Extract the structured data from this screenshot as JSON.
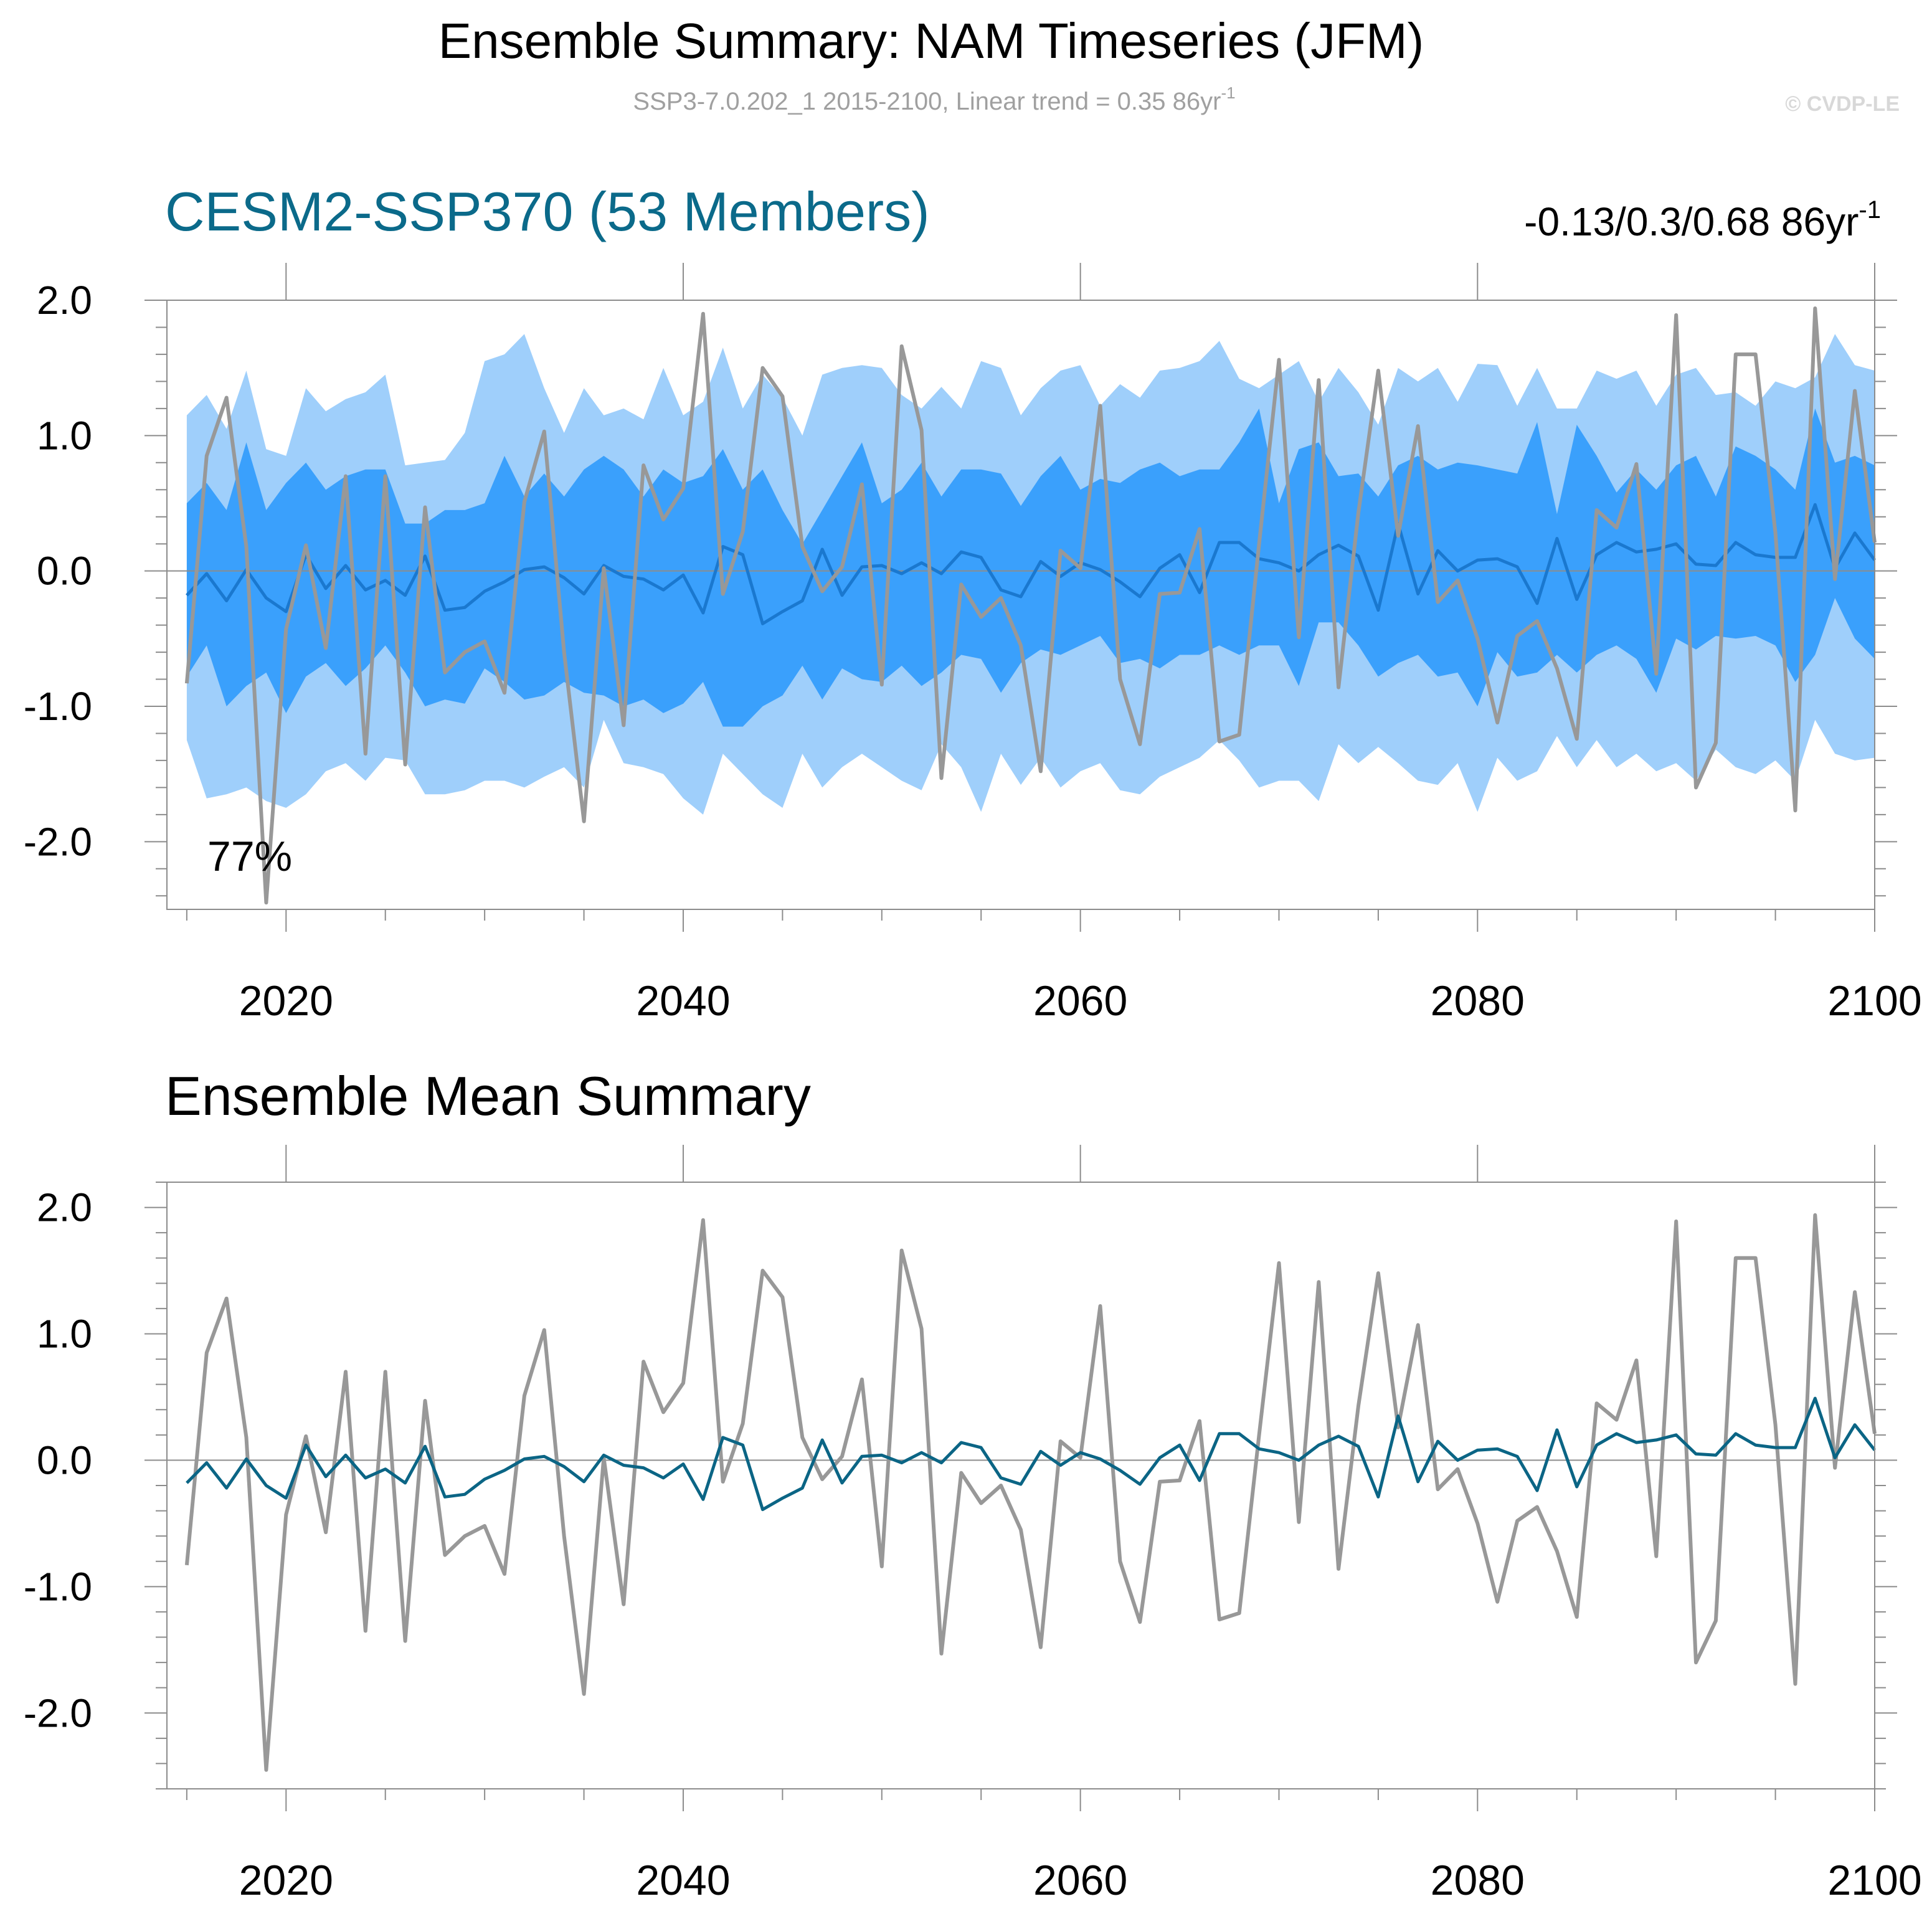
{
  "header": {
    "title": "Ensemble Summary: NAM Timeseries (JFM)",
    "subtitle_main": "SSP3-7.0.202_1 2015-2100, Linear trend = 0.35 86yr",
    "subtitle_sup": "-1",
    "copyright": "© CVDP-LE"
  },
  "colors": {
    "outer_band": "#9fcffb",
    "inner_band": "#3aa0fc",
    "ensemble_mean_top": "#1a78cf",
    "ensemble_mean_bottom": "#0b6585",
    "observations": "#989898",
    "panel_title": "#0b6a8a"
  },
  "panel_top": {
    "title": "CESM2-SSP370 (53 Members)",
    "trend_text": "-0.13/0.3/0.68 86yr",
    "trend_sup": "-1",
    "percent_label": "77%"
  },
  "panel_bottom": {
    "title": "Ensemble Mean Summary"
  },
  "chart_data": [
    {
      "type": "line",
      "title": "CESM2-SSP370 (53 Members)",
      "xlim": [
        2014,
        2100
      ],
      "ylim": [
        -2.5,
        2.0
      ],
      "x_ticks": [
        2020,
        2040,
        2060,
        2080,
        2100
      ],
      "y_ticks": [
        -2.0,
        -1.0,
        0.0,
        1.0,
        2.0
      ],
      "y_tick_labels": [
        "-2.0",
        "-1.0",
        "0.0",
        "1.0",
        "2.0"
      ],
      "x_tick_labels": [
        "2020",
        "2040",
        "2060",
        "2080",
        "2100"
      ],
      "years_start": 2015,
      "years_end": 2100,
      "series": [
        {
          "values": [
            1.15,
            1.3,
            1.05,
            1.48,
            0.9,
            0.85,
            1.35,
            1.18,
            1.27,
            1.32,
            1.45,
            0.78,
            0.8,
            0.82,
            1.02,
            1.55,
            1.6,
            1.75,
            1.35,
            1.02,
            1.35,
            1.15,
            1.2,
            1.12,
            1.5,
            1.15,
            1.25,
            1.65,
            1.2,
            1.45,
            1.28,
            1.0,
            1.45,
            1.5,
            1.52,
            1.5,
            1.3,
            1.2,
            1.36,
            1.2,
            1.55,
            1.5,
            1.15,
            1.35,
            1.48,
            1.52,
            1.22,
            1.38,
            1.28,
            1.48,
            1.5,
            1.55,
            1.7,
            1.42,
            1.35,
            1.45,
            1.55,
            1.25,
            1.5,
            1.32,
            1.08,
            1.5,
            1.4,
            1.5,
            1.25,
            1.53,
            1.52,
            1.22,
            1.5,
            1.2,
            1.2,
            1.48,
            1.42,
            1.48,
            1.22,
            1.45,
            1.5,
            1.3,
            1.32,
            1.22,
            1.4,
            1.35,
            1.43,
            1.75,
            1.52,
            1.48
          ]
        },
        {
          "values": [
            0.5,
            0.65,
            0.45,
            0.95,
            0.45,
            0.65,
            0.8,
            0.6,
            0.7,
            0.75,
            0.75,
            0.35,
            0.35,
            0.45,
            0.45,
            0.5,
            0.85,
            0.55,
            0.72,
            0.55,
            0.75,
            0.85,
            0.75,
            0.55,
            0.75,
            0.65,
            0.7,
            0.9,
            0.6,
            0.75,
            0.45,
            0.2,
            0.45,
            0.7,
            0.95,
            0.5,
            0.6,
            0.8,
            0.55,
            0.75,
            0.75,
            0.72,
            0.48,
            0.7,
            0.85,
            0.6,
            0.68,
            0.65,
            0.75,
            0.8,
            0.7,
            0.75,
            0.75,
            0.95,
            1.2,
            0.5,
            0.9,
            0.95,
            0.7,
            0.72,
            0.55,
            0.78,
            0.85,
            0.75,
            0.8,
            0.78,
            0.75,
            0.72,
            1.1,
            0.42,
            1.08,
            0.85,
            0.58,
            0.75,
            0.6,
            0.78,
            0.85,
            0.55,
            0.92,
            0.85,
            0.75,
            0.6,
            1.2,
            0.8,
            0.85,
            0.78
          ]
        },
        {
          "values": [
            -0.78,
            -0.55,
            -1.0,
            -0.85,
            -0.75,
            -1.05,
            -0.78,
            -0.68,
            -0.85,
            -0.72,
            -0.55,
            -0.75,
            -1.0,
            -0.95,
            -0.98,
            -0.72,
            -0.82,
            -0.95,
            -0.92,
            -0.82,
            -0.9,
            -0.92,
            -1.0,
            -0.95,
            -1.05,
            -0.98,
            -0.82,
            -1.15,
            -1.15,
            -1.0,
            -0.92,
            -0.7,
            -0.95,
            -0.72,
            -0.8,
            -0.82,
            -0.7,
            -0.85,
            -0.75,
            -0.62,
            -0.65,
            -0.9,
            -0.68,
            -0.58,
            -0.62,
            -0.55,
            -0.48,
            -0.68,
            -0.65,
            -0.72,
            -0.62,
            -0.62,
            -0.55,
            -0.62,
            -0.55,
            -0.55,
            -0.85,
            -0.38,
            -0.38,
            -0.55,
            -0.78,
            -0.68,
            -0.62,
            -0.78,
            -0.75,
            -1.0,
            -0.6,
            -0.78,
            -0.75,
            -0.62,
            -0.75,
            -0.62,
            -0.55,
            -0.65,
            -0.9,
            -0.5,
            -0.58,
            -0.48,
            -0.5,
            -0.48,
            -0.55,
            -0.82,
            -0.62,
            -0.2,
            -0.5,
            -0.65
          ]
        },
        {
          "values": [
            -1.25,
            -1.68,
            -1.65,
            -1.6,
            -1.7,
            -1.75,
            -1.65,
            -1.48,
            -1.42,
            -1.55,
            -1.38,
            -1.4,
            -1.65,
            -1.65,
            -1.62,
            -1.55,
            -1.55,
            -1.6,
            -1.52,
            -1.45,
            -1.6,
            -1.1,
            -1.42,
            -1.45,
            -1.5,
            -1.68,
            -1.8,
            -1.35,
            -1.5,
            -1.65,
            -1.75,
            -1.35,
            -1.6,
            -1.45,
            -1.35,
            -1.45,
            -1.55,
            -1.62,
            -1.28,
            -1.45,
            -1.78,
            -1.35,
            -1.58,
            -1.38,
            -1.6,
            -1.48,
            -1.42,
            -1.62,
            -1.65,
            -1.52,
            -1.45,
            -1.38,
            -1.25,
            -1.4,
            -1.6,
            -1.55,
            -1.55,
            -1.7,
            -1.28,
            -1.42,
            -1.3,
            -1.42,
            -1.55,
            -1.58,
            -1.42,
            -1.78,
            -1.38,
            -1.55,
            -1.48,
            -1.22,
            -1.45,
            -1.25,
            -1.45,
            -1.35,
            -1.48,
            -1.42,
            -1.55,
            -1.32,
            -1.45,
            -1.5,
            -1.4,
            -1.55,
            -1.1,
            -1.35,
            -1.4,
            -1.38
          ]
        },
        {
          "name": "",
          "values": [
            -0.18,
            -0.02,
            -0.22,
            0.01,
            -0.2,
            -0.3,
            0.12,
            -0.13,
            0.04,
            -0.14,
            -0.07,
            -0.18,
            0.11,
            -0.29,
            -0.27,
            -0.15,
            -0.08,
            0.01,
            0.03,
            -0.05,
            -0.17,
            0.04,
            -0.04,
            -0.06,
            -0.14,
            -0.03,
            -0.31,
            0.18,
            0.12,
            -0.39,
            -0.3,
            -0.22,
            0.16,
            -0.18,
            0.03,
            0.04,
            -0.02,
            0.06,
            -0.02,
            0.14,
            0.1,
            -0.14,
            -0.19,
            0.07,
            -0.04,
            0.06,
            0.01,
            -0.08,
            -0.19,
            0.02,
            0.12,
            -0.16,
            0.21,
            0.21,
            0.09,
            0.06,
            0.0,
            0.12,
            0.19,
            0.11,
            -0.29,
            0.35,
            -0.17,
            0.15,
            0.0,
            0.08,
            0.09,
            0.03,
            -0.24,
            0.24,
            -0.21,
            0.12,
            0.21,
            0.14,
            0.16,
            0.2,
            0.05,
            0.04,
            0.21,
            0.12,
            0.1,
            0.1,
            0.49,
            0.02,
            0.28,
            0.08
          ]
        },
        {
          "name": "",
          "values": [
            -0.83,
            0.85,
            1.28,
            0.18,
            -2.45,
            -0.43,
            0.19,
            -0.57,
            0.7,
            -1.35,
            0.7,
            -1.43,
            0.47,
            -0.75,
            -0.6,
            -0.52,
            -0.9,
            0.51,
            1.03,
            -0.6,
            -1.85,
            0.02,
            -1.14,
            0.78,
            0.38,
            0.61,
            1.9,
            -0.17,
            0.29,
            1.5,
            1.29,
            0.18,
            -0.15,
            0.03,
            0.64,
            -0.84,
            1.66,
            1.04,
            -1.53,
            -0.1,
            -0.34,
            -0.2,
            -0.55,
            -1.48,
            0.15,
            0.02,
            1.22,
            -0.8,
            -1.28,
            -0.17,
            -0.16,
            0.31,
            -1.26,
            -1.21,
            0.2,
            1.56,
            -0.49,
            1.41,
            -0.86,
            0.43,
            1.48,
            0.26,
            1.07,
            -0.23,
            -0.07,
            -0.5,
            -1.12,
            -0.48,
            -0.37,
            -0.72,
            -1.24,
            0.45,
            0.32,
            0.79,
            -0.76,
            1.89,
            -1.6,
            -1.27,
            1.6,
            1.6,
            0.28,
            -1.77,
            1.94,
            -0.06,
            1.33,
            0.21
          ]
        }
      ]
    },
    {
      "type": "line",
      "title": "Ensemble Mean Summary",
      "xlim": [
        2014,
        2100
      ],
      "ylim": [
        -2.6,
        2.2
      ],
      "x_ticks": [
        2020,
        2040,
        2060,
        2080,
        2100
      ],
      "y_ticks": [
        -2.0,
        -1.0,
        0.0,
        1.0,
        2.0
      ],
      "y_tick_labels": [
        "-2.0",
        "-1.0",
        "0.0",
        "1.0",
        "2.0"
      ],
      "x_tick_labels": [
        "2020",
        "2040",
        "2060",
        "2080",
        "2100"
      ],
      "years_start": 2015,
      "years_end": 2100,
      "series": [
        {
          "name": "",
          "values": [
            -0.18,
            -0.02,
            -0.22,
            0.01,
            -0.2,
            -0.3,
            0.12,
            -0.13,
            0.04,
            -0.14,
            -0.07,
            -0.18,
            0.11,
            -0.29,
            -0.27,
            -0.15,
            -0.08,
            0.01,
            0.03,
            -0.05,
            -0.17,
            0.04,
            -0.04,
            -0.06,
            -0.14,
            -0.03,
            -0.31,
            0.18,
            0.12,
            -0.39,
            -0.3,
            -0.22,
            0.16,
            -0.18,
            0.03,
            0.04,
            -0.02,
            0.06,
            -0.02,
            0.14,
            0.1,
            -0.14,
            -0.19,
            0.07,
            -0.04,
            0.06,
            0.01,
            -0.08,
            -0.19,
            0.02,
            0.12,
            -0.16,
            0.21,
            0.21,
            0.09,
            0.06,
            0.0,
            0.12,
            0.19,
            0.11,
            -0.29,
            0.35,
            -0.17,
            0.15,
            0.0,
            0.08,
            0.09,
            0.03,
            -0.24,
            0.24,
            -0.21,
            0.12,
            0.21,
            0.14,
            0.16,
            0.2,
            0.05,
            0.04,
            0.21,
            0.12,
            0.1,
            0.1,
            0.49,
            0.02,
            0.28,
            0.08
          ]
        },
        {
          "name": "",
          "values": [
            -0.83,
            0.85,
            1.28,
            0.18,
            -2.45,
            -0.43,
            0.19,
            -0.57,
            0.7,
            -1.35,
            0.7,
            -1.43,
            0.47,
            -0.75,
            -0.6,
            -0.52,
            -0.9,
            0.51,
            1.03,
            -0.6,
            -1.85,
            0.02,
            -1.14,
            0.78,
            0.38,
            0.61,
            1.9,
            -0.17,
            0.29,
            1.5,
            1.29,
            0.18,
            -0.15,
            0.03,
            0.64,
            -0.84,
            1.66,
            1.04,
            -1.53,
            -0.1,
            -0.34,
            -0.2,
            -0.55,
            -1.48,
            0.15,
            0.02,
            1.22,
            -0.8,
            -1.28,
            -0.17,
            -0.16,
            0.31,
            -1.26,
            -1.21,
            0.2,
            1.56,
            -0.49,
            1.41,
            -0.86,
            0.43,
            1.48,
            0.26,
            1.07,
            -0.23,
            -0.07,
            -0.5,
            -1.12,
            -0.48,
            -0.37,
            -0.72,
            -1.24,
            0.45,
            0.32,
            0.79,
            -0.76,
            1.89,
            -1.6,
            -1.27,
            1.6,
            1.6,
            0.28,
            -1.77,
            1.94,
            -0.06,
            1.33,
            0.21
          ]
        }
      ]
    }
  ]
}
